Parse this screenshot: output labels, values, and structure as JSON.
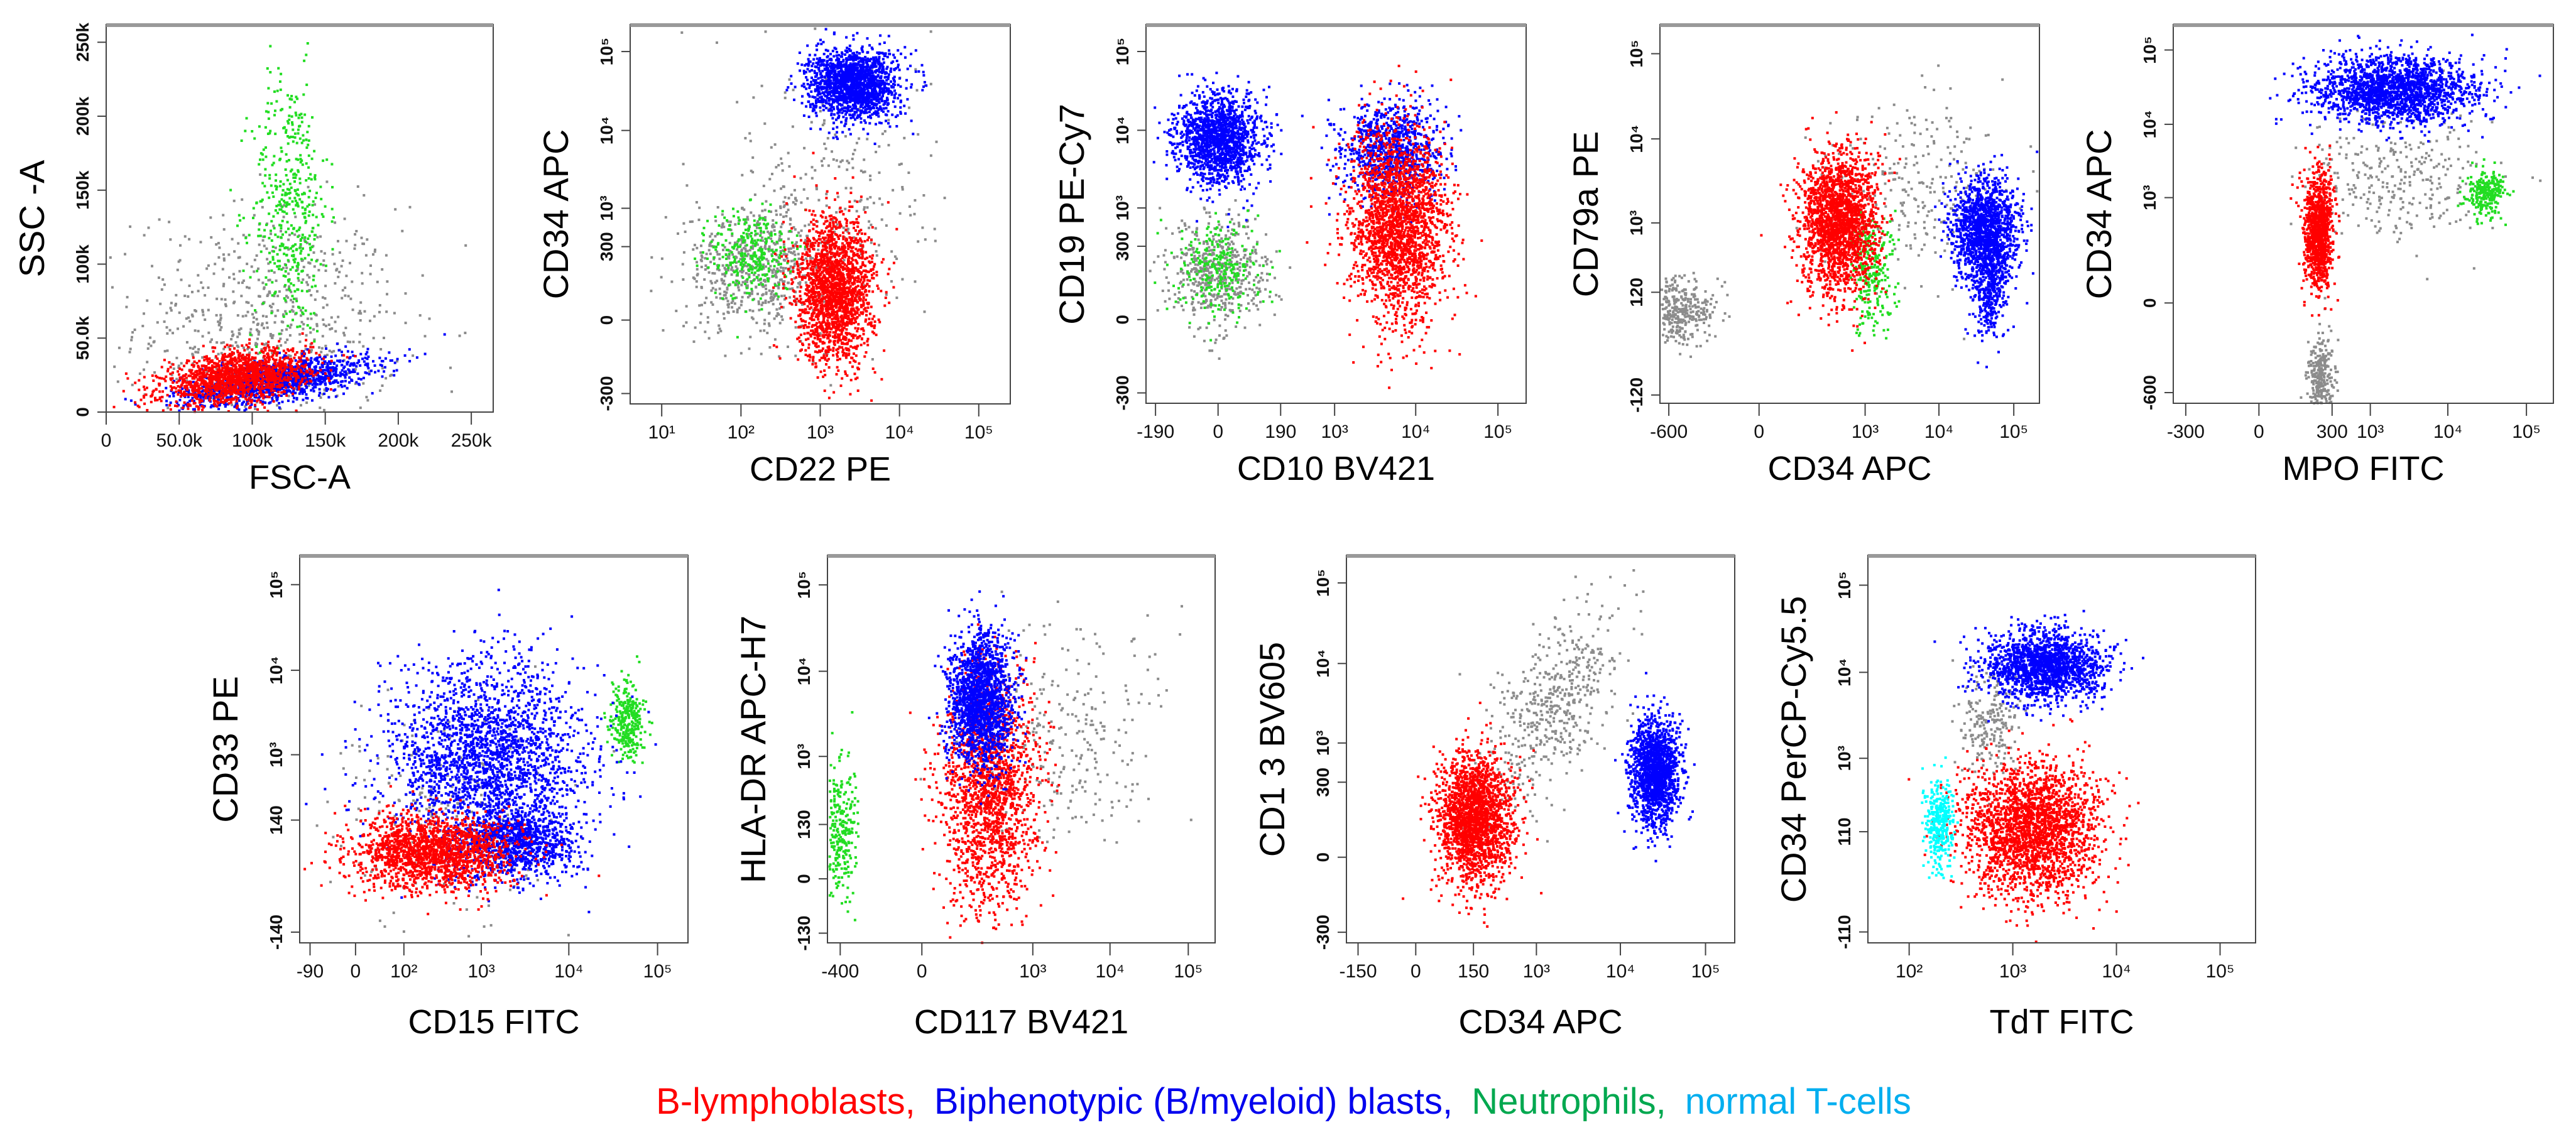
{
  "colors": {
    "red": "#ff0000",
    "blue": "#0000ff",
    "green": "#22dd22",
    "gray": "#8c8c8c",
    "cyan": "#00ffff"
  },
  "legend": [
    {
      "label": "B-lymphoblasts,",
      "color": "#ff0000"
    },
    {
      "label": "Biphenotypic (B/myeloid) blasts,",
      "color": "#0000ee"
    },
    {
      "label": "Neutrophils,",
      "color": "#00a84f"
    },
    {
      "label": "normal T-cells",
      "color": "#00aeef"
    }
  ],
  "chart_data": [
    {
      "type": "scatter",
      "xlabel": "FSC-A",
      "ylabel": "SSC -A",
      "xaxis": {
        "scale": "linear",
        "range": [
          0,
          265000
        ],
        "ticks": [
          [
            0,
            "0"
          ],
          [
            50000,
            "50.0k"
          ],
          [
            100000,
            "100k"
          ],
          [
            150000,
            "150k"
          ],
          [
            200000,
            "200k"
          ],
          [
            250000,
            "250k"
          ]
        ]
      },
      "yaxis": {
        "scale": "linear",
        "range": [
          0,
          262000
        ],
        "ticks": [
          [
            0,
            "0"
          ],
          [
            50000,
            "50.0k"
          ],
          [
            100000,
            "100k"
          ],
          [
            150000,
            "150k"
          ],
          [
            200000,
            "200k"
          ],
          [
            250000,
            "250k"
          ]
        ]
      },
      "clusters": [
        {
          "color": "gray",
          "center": [
            110000,
            60000
          ],
          "spread": [
            45000,
            40000
          ],
          "n": 700
        },
        {
          "color": "green",
          "center": [
            125000,
            140000
          ],
          "spread": [
            13000,
            45000
          ],
          "n": 450
        },
        {
          "color": "blue",
          "center": [
            115000,
            22000
          ],
          "spread": [
            32000,
            8000
          ],
          "n": 1400,
          "corr": 0.6
        },
        {
          "color": "red",
          "center": [
            88000,
            24000
          ],
          "spread": [
            25000,
            9000
          ],
          "n": 1500,
          "corr": 0.4
        }
      ]
    },
    {
      "type": "scatter",
      "xlabel": "CD22 PE",
      "ylabel": "CD34 APC",
      "xaxis": {
        "scale": "log",
        "range": [
          4,
          250000
        ],
        "ticks": [
          [
            10,
            "10¹"
          ],
          [
            100,
            "10²"
          ],
          [
            1000,
            "10³"
          ],
          [
            10000,
            "10⁴"
          ],
          [
            100000,
            "10⁵"
          ]
        ]
      },
      "yaxis": {
        "scale": "biex",
        "range": [
          -420,
          220000
        ],
        "ticks": [
          [
            -300,
            "-300"
          ],
          [
            0,
            "0"
          ],
          [
            300,
            "300"
          ],
          [
            1000,
            "10³"
          ],
          [
            10000,
            "10⁴"
          ],
          [
            100000,
            "10⁵"
          ]
        ]
      },
      "clusters": [
        {
          "color": "gray",
          "center": [
            150,
            150
          ],
          "spread": [
            0.45,
            0.4
          ],
          "n": 600
        },
        {
          "color": "gray",
          "center": [
            1500,
            2000
          ],
          "spread": [
            0.6,
            0.9
          ],
          "n": 250
        },
        {
          "color": "green",
          "center": [
            130,
            250
          ],
          "spread": [
            0.25,
            0.3
          ],
          "n": 300
        },
        {
          "color": "blue",
          "center": [
            2500,
            40000
          ],
          "spread": [
            0.28,
            0.22
          ],
          "n": 1700
        },
        {
          "color": "red",
          "center": [
            1500,
            60
          ],
          "spread": [
            0.24,
            0.45
          ],
          "n": 1900
        }
      ]
    },
    {
      "type": "scatter",
      "xlabel": "CD10 BV421",
      "ylabel": "CD19 PE-Cy7",
      "xaxis": {
        "scale": "biex",
        "range": [
          -260,
          220000
        ],
        "ticks": [
          [
            -190,
            "-190"
          ],
          [
            0,
            "0"
          ],
          [
            190,
            "190"
          ],
          [
            1000,
            "10³"
          ],
          [
            10000,
            "10⁴"
          ],
          [
            100000,
            "10⁵"
          ]
        ]
      },
      "yaxis": {
        "scale": "biex",
        "range": [
          -420,
          220000
        ],
        "ticks": [
          [
            -300,
            "-300"
          ],
          [
            0,
            "0"
          ],
          [
            300,
            "300"
          ],
          [
            1000,
            "10³"
          ],
          [
            10000,
            "10⁴"
          ],
          [
            100000,
            "10⁵"
          ]
        ]
      },
      "clusters": [
        {
          "color": "gray",
          "center": [
            0,
            120
          ],
          "spread": [
            0.3,
            0.35
          ],
          "n": 500
        },
        {
          "color": "green",
          "center": [
            0,
            150
          ],
          "spread": [
            0.25,
            0.3
          ],
          "n": 250
        },
        {
          "color": "blue",
          "center": [
            0,
            8000
          ],
          "spread": [
            0.25,
            0.28
          ],
          "n": 1500
        },
        {
          "color": "blue",
          "center": [
            5000,
            6000
          ],
          "spread": [
            0.3,
            0.3
          ],
          "n": 900
        },
        {
          "color": "red",
          "center": [
            6000,
            600
          ],
          "spread": [
            0.3,
            0.6
          ],
          "n": 2200
        }
      ]
    },
    {
      "type": "scatter",
      "xlabel": "CD34 APC",
      "ylabel": "CD79a PE",
      "xaxis": {
        "scale": "biex",
        "range": [
          -800,
          220000
        ],
        "ticks": [
          [
            -600,
            "-600"
          ],
          [
            0,
            "0"
          ],
          [
            1000,
            "10³"
          ],
          [
            10000,
            "10⁴"
          ],
          [
            100000,
            "10⁵"
          ]
        ]
      },
      "yaxis": {
        "scale": "biex",
        "range": [
          -160,
          220000
        ],
        "ticks": [
          [
            -120,
            "-120"
          ],
          [
            120,
            "120"
          ],
          [
            1000,
            "10³"
          ],
          [
            10000,
            "10⁴"
          ],
          [
            100000,
            "10⁵"
          ]
        ]
      },
      "clusters": [
        {
          "color": "gray",
          "center": [
            -500,
            60
          ],
          "spread": [
            0.25,
            0.2
          ],
          "n": 400
        },
        {
          "color": "gray",
          "center": [
            5000,
            3000
          ],
          "spread": [
            0.6,
            0.5
          ],
          "n": 250
        },
        {
          "color": "green",
          "center": [
            1200,
            250
          ],
          "spread": [
            0.15,
            0.35
          ],
          "n": 250
        },
        {
          "color": "blue",
          "center": [
            40000,
            900
          ],
          "spread": [
            0.22,
            0.28
          ],
          "n": 1400
        },
        {
          "color": "blue",
          "center": [
            45000,
            150
          ],
          "spread": [
            0.12,
            0.3
          ],
          "n": 400
        },
        {
          "color": "red",
          "center": [
            400,
            1000
          ],
          "spread": [
            0.25,
            0.42
          ],
          "n": 2000
        }
      ]
    },
    {
      "type": "scatter",
      "xlabel": "MPO FITC",
      "ylabel": "CD34 APC",
      "xaxis": {
        "scale": "biex",
        "range": [
          -450,
          220000
        ],
        "ticks": [
          [
            -300,
            "-300"
          ],
          [
            0,
            "0"
          ],
          [
            300,
            "300"
          ],
          [
            1000,
            "10³"
          ],
          [
            10000,
            "10⁴"
          ],
          [
            100000,
            "10⁵"
          ]
        ]
      },
      "yaxis": {
        "scale": "biex",
        "range": [
          -850,
          220000
        ],
        "ticks": [
          [
            -600,
            "-600"
          ],
          [
            0,
            "0"
          ],
          [
            1000,
            "10³"
          ],
          [
            10000,
            "10⁴"
          ],
          [
            100000,
            "10⁵"
          ]
        ]
      },
      "clusters": [
        {
          "color": "gray",
          "center": [
            200,
            -400
          ],
          "spread": [
            0.08,
            0.3
          ],
          "n": 300
        },
        {
          "color": "gray",
          "center": [
            2000,
            2000
          ],
          "spread": [
            0.6,
            0.45
          ],
          "n": 300
        },
        {
          "color": "green",
          "center": [
            30000,
            1200
          ],
          "spread": [
            0.12,
            0.15
          ],
          "n": 250
        },
        {
          "color": "blue",
          "center": [
            2000,
            30000
          ],
          "spread": [
            0.5,
            0.22
          ],
          "n": 1900
        },
        {
          "color": "red",
          "center": [
            180,
            350
          ],
          "spread": [
            0.09,
            0.38
          ],
          "n": 1100
        }
      ]
    },
    {
      "type": "scatter",
      "xlabel": "CD15 FITC",
      "ylabel": "CD33 PE",
      "xaxis": {
        "scale": "biex",
        "range": [
          -130,
          220000
        ],
        "ticks": [
          [
            -90,
            "-90"
          ],
          [
            0,
            "0"
          ],
          [
            100,
            "10²"
          ],
          [
            1000,
            "10³"
          ],
          [
            10000,
            "10⁴"
          ],
          [
            100000,
            "10⁵"
          ]
        ]
      },
      "yaxis": {
        "scale": "biex",
        "range": [
          -200,
          220000
        ],
        "ticks": [
          [
            -140,
            "-140"
          ],
          [
            140,
            "140"
          ],
          [
            1000,
            "10³"
          ],
          [
            10000,
            "10⁴"
          ],
          [
            100000,
            "10⁵"
          ]
        ]
      },
      "clusters": [
        {
          "color": "gray",
          "center": [
            300,
            200
          ],
          "spread": [
            0.6,
            0.6
          ],
          "n": 200
        },
        {
          "color": "green",
          "center": [
            45000,
            2500
          ],
          "spread": [
            0.09,
            0.22
          ],
          "n": 300
        },
        {
          "color": "blue",
          "center": [
            1200,
            900
          ],
          "spread": [
            0.55,
            0.55
          ],
          "n": 2200
        },
        {
          "color": "blue",
          "center": [
            2500,
            60
          ],
          "spread": [
            0.35,
            0.2
          ],
          "n": 1000
        },
        {
          "color": "red",
          "center": [
            250,
            40
          ],
          "spread": [
            0.45,
            0.22
          ],
          "n": 1700
        }
      ]
    },
    {
      "type": "scatter",
      "xlabel": "CD117 BV421",
      "ylabel": "HLA-DR APC-H7",
      "xaxis": {
        "scale": "biex",
        "range": [
          -600,
          220000
        ],
        "ticks": [
          [
            -400,
            "-400"
          ],
          [
            0,
            "0"
          ],
          [
            1000,
            "10³"
          ],
          [
            10000,
            "10⁴"
          ],
          [
            100000,
            "10⁵"
          ]
        ]
      },
      "yaxis": {
        "scale": "biex",
        "range": [
          -180,
          220000
        ],
        "ticks": [
          [
            -130,
            "-130"
          ],
          [
            0,
            "0"
          ],
          [
            130,
            "130"
          ],
          [
            1000,
            "10³"
          ],
          [
            10000,
            "10⁴"
          ],
          [
            100000,
            "10⁵"
          ]
        ]
      },
      "clusters": [
        {
          "color": "gray",
          "center": [
            3000,
            1500
          ],
          "spread": [
            0.6,
            0.6
          ],
          "n": 250
        },
        {
          "color": "green",
          "center": [
            -450,
            100
          ],
          "spread": [
            0.12,
            0.4
          ],
          "n": 300
        },
        {
          "color": "red",
          "center": [
            250,
            400
          ],
          "spread": [
            0.3,
            0.65
          ],
          "n": 1700
        },
        {
          "color": "blue",
          "center": [
            180,
            5000
          ],
          "spread": [
            0.2,
            0.38
          ],
          "n": 1700
        }
      ]
    },
    {
      "type": "scatter",
      "xlabel": "CD34 APC",
      "ylabel": "CD1 3  BV605",
      "xaxis": {
        "scale": "biex",
        "range": [
          -220,
          220000
        ],
        "ticks": [
          [
            -150,
            "-150"
          ],
          [
            0,
            "0"
          ],
          [
            150,
            "150"
          ],
          [
            1000,
            "10³"
          ],
          [
            10000,
            "10⁴"
          ],
          [
            100000,
            "10⁵"
          ]
        ]
      },
      "yaxis": {
        "scale": "biex",
        "range": [
          -420,
          220000
        ],
        "ticks": [
          [
            -300,
            "-300"
          ],
          [
            0,
            "0"
          ],
          [
            300,
            "300"
          ],
          [
            1000,
            "10³"
          ],
          [
            10000,
            "10⁴"
          ],
          [
            100000,
            "10⁵"
          ]
        ]
      },
      "clusters": [
        {
          "color": "gray",
          "center": [
            1500,
            3000
          ],
          "spread": [
            0.4,
            0.6
          ],
          "n": 500,
          "corr": 0.6
        },
        {
          "color": "blue",
          "center": [
            25000,
            400
          ],
          "spread": [
            0.14,
            0.32
          ],
          "n": 1500
        },
        {
          "color": "red",
          "center": [
            150,
            80
          ],
          "spread": [
            0.22,
            0.4
          ],
          "n": 2000
        }
      ]
    },
    {
      "type": "scatter",
      "xlabel": "TdT FITC",
      "ylabel": "CD34 PerCP-Cy5.5",
      "xaxis": {
        "scale": "log",
        "range": [
          40,
          220000
        ],
        "ticks": [
          [
            100,
            "10²"
          ],
          [
            1000,
            "10³"
          ],
          [
            10000,
            "10⁴"
          ],
          [
            100000,
            "10⁵"
          ]
        ]
      },
      "yaxis": {
        "scale": "biex",
        "range": [
          -160,
          220000
        ],
        "ticks": [
          [
            -110,
            "-110"
          ],
          [
            110,
            "110"
          ],
          [
            1000,
            "10³"
          ],
          [
            10000,
            "10⁴"
          ],
          [
            100000,
            "10⁵"
          ]
        ]
      },
      "clusters": [
        {
          "color": "gray",
          "center": [
            600,
            2500
          ],
          "spread": [
            0.15,
            0.3
          ],
          "n": 200
        },
        {
          "color": "blue",
          "center": [
            2000,
            12000
          ],
          "spread": [
            0.28,
            0.2
          ],
          "n": 1700
        },
        {
          "color": "red",
          "center": [
            1500,
            120
          ],
          "spread": [
            0.32,
            0.38
          ],
          "n": 2300
        },
        {
          "color": "cyan",
          "center": [
            190,
            150
          ],
          "spread": [
            0.07,
            0.25
          ],
          "n": 350
        }
      ]
    }
  ]
}
